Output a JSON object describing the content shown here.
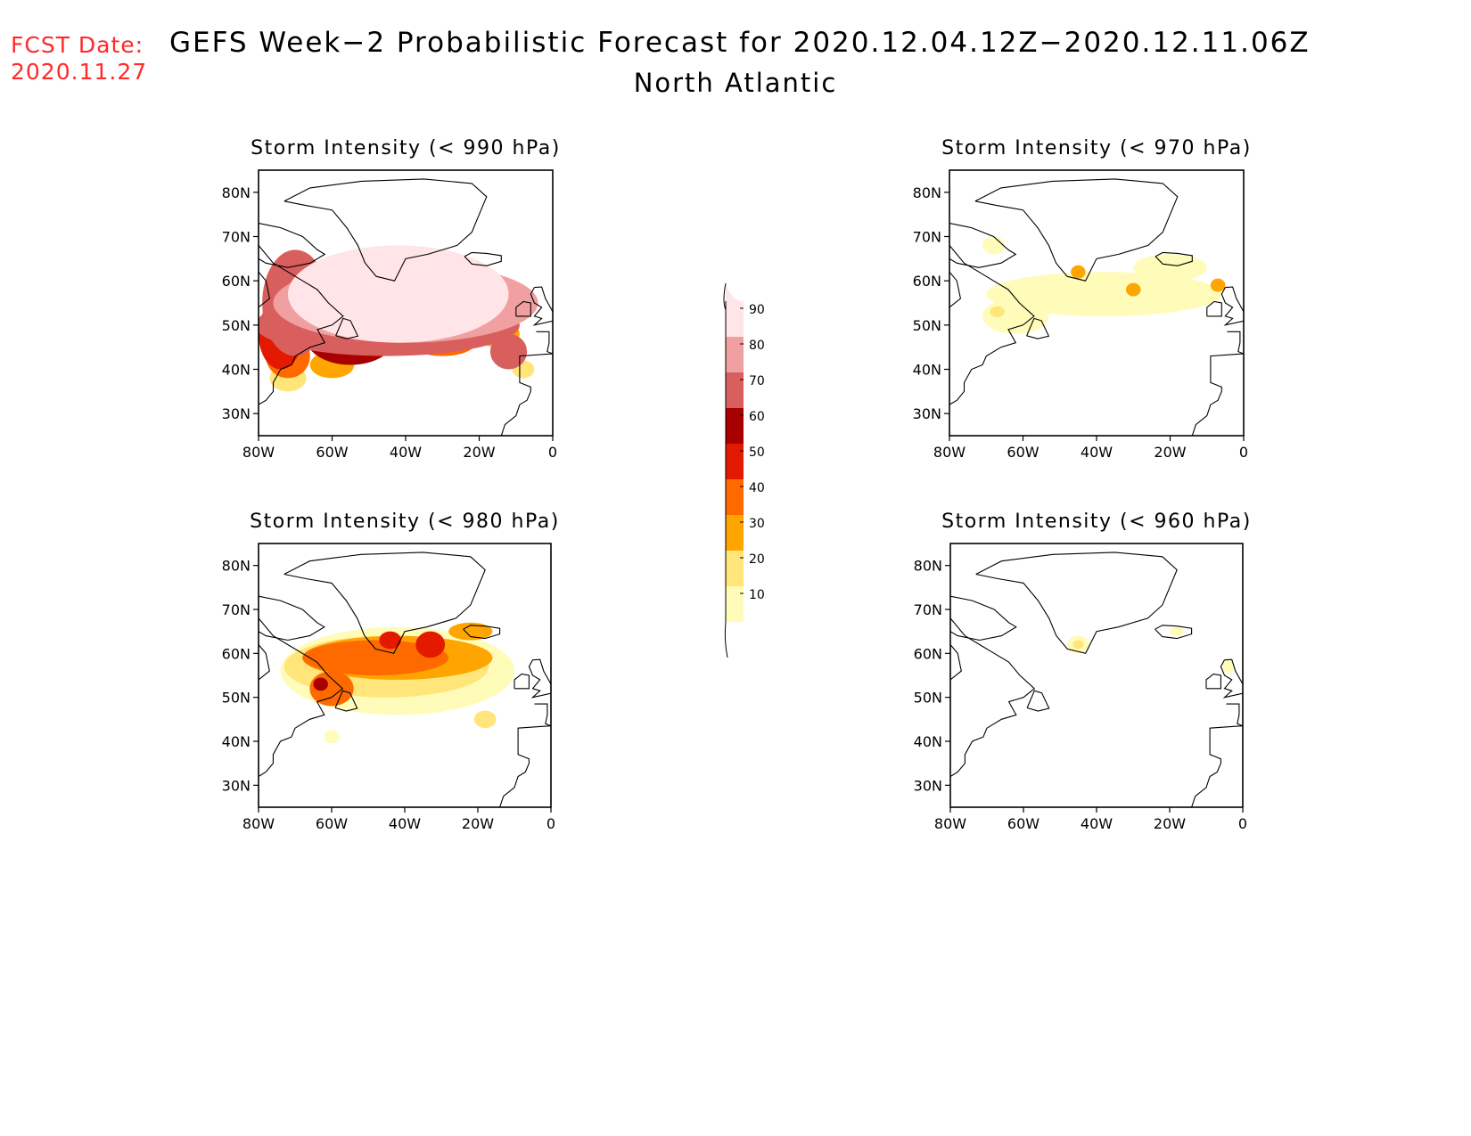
{
  "header": {
    "fcst_label": "FCST Date:",
    "fcst_date": "2020.11.27",
    "title": "GEFS Week−2 Probabilistic Forecast for 2020.12.04.12Z−2020.12.11.06Z",
    "region": "North Atlantic"
  },
  "axes": {
    "lon_ticks": [
      "80W",
      "60W",
      "40W",
      "20W",
      "0"
    ],
    "lon_values": [
      -80,
      -60,
      -40,
      -20,
      0
    ],
    "lat_ticks": [
      "80N",
      "70N",
      "60N",
      "50N",
      "40N",
      "30N"
    ],
    "lat_values": [
      80,
      70,
      60,
      50,
      40,
      30
    ],
    "lon_range": [
      -80,
      0
    ],
    "lat_range": [
      25,
      85
    ]
  },
  "colorbar": {
    "levels": [
      10,
      20,
      30,
      40,
      50,
      60,
      70,
      80,
      90
    ],
    "labels": [
      "10",
      "20",
      "30",
      "40",
      "50",
      "60",
      "70",
      "80",
      "90"
    ],
    "colors": [
      "#fffbb8",
      "#ffe57a",
      "#ffa500",
      "#ff6a00",
      "#e31a00",
      "#a80000",
      "#d95f5f",
      "#f0a0a0",
      "#ffe5e8"
    ]
  },
  "panels": [
    {
      "id": "p990",
      "title": "Storm Intensity (< 990 hPa)",
      "blobs": [
        {
          "lon": -42,
          "lat": 57,
          "rlon": 30,
          "rlat": 11,
          "level": 90
        },
        {
          "lon": -40,
          "lat": 55,
          "rlon": 36,
          "rlat": 9,
          "level": 80
        },
        {
          "lon": -45,
          "lat": 50,
          "rlon": 36,
          "rlat": 7,
          "level": 70
        },
        {
          "lon": -70,
          "lat": 55,
          "rlon": 9,
          "rlat": 12,
          "level": 70
        },
        {
          "lon": -12,
          "lat": 44,
          "rlon": 5,
          "rlat": 4,
          "level": 70
        },
        {
          "lon": -55,
          "lat": 47,
          "rlon": 12,
          "rlat": 6,
          "level": 60
        },
        {
          "lon": -74,
          "lat": 48,
          "rlon": 6,
          "rlat": 8,
          "level": 50
        },
        {
          "lon": -72,
          "lat": 43,
          "rlon": 6,
          "rlat": 5,
          "level": 40
        },
        {
          "lon": -30,
          "lat": 46,
          "rlon": 9,
          "rlat": 3,
          "level": 40
        },
        {
          "lon": -15,
          "lat": 48,
          "rlon": 6,
          "rlat": 3,
          "level": 30
        },
        {
          "lon": -72,
          "lat": 38,
          "rlon": 5,
          "rlat": 3,
          "level": 20
        },
        {
          "lon": -60,
          "lat": 41,
          "rlon": 6,
          "rlat": 3,
          "level": 30
        },
        {
          "lon": -8,
          "lat": 40,
          "rlon": 3,
          "rlat": 2,
          "level": 20
        }
      ]
    },
    {
      "id": "p970",
      "title": "Storm Intensity (< 970 hPa)",
      "blobs": [
        {
          "lon": -38,
          "lat": 57,
          "rlon": 32,
          "rlat": 5,
          "level": 10
        },
        {
          "lon": -62,
          "lat": 52,
          "rlon": 9,
          "rlat": 4,
          "level": 10
        },
        {
          "lon": -20,
          "lat": 63,
          "rlon": 10,
          "rlat": 3,
          "level": 10
        },
        {
          "lon": -68,
          "lat": 68,
          "rlon": 3,
          "rlat": 2,
          "level": 10
        },
        {
          "lon": -45,
          "lat": 62,
          "rlon": 2,
          "rlat": 1.5,
          "level": 30
        },
        {
          "lon": -30,
          "lat": 58,
          "rlon": 2,
          "rlat": 1.5,
          "level": 30
        },
        {
          "lon": -7,
          "lat": 59,
          "rlon": 2,
          "rlat": 1.5,
          "level": 30
        },
        {
          "lon": -67,
          "lat": 53,
          "rlon": 2,
          "rlat": 1.2,
          "level": 20
        }
      ]
    },
    {
      "id": "p980",
      "title": "Storm Intensity (< 980 hPa)",
      "blobs": [
        {
          "lon": -42,
          "lat": 56,
          "rlon": 32,
          "rlat": 10,
          "level": 10
        },
        {
          "lon": -45,
          "lat": 57,
          "rlon": 28,
          "rlat": 7,
          "level": 20
        },
        {
          "lon": -42,
          "lat": 59,
          "rlon": 26,
          "rlat": 5,
          "level": 30
        },
        {
          "lon": -48,
          "lat": 59,
          "rlon": 20,
          "rlat": 4,
          "level": 40
        },
        {
          "lon": -60,
          "lat": 52,
          "rlon": 6,
          "rlat": 4,
          "level": 40
        },
        {
          "lon": -44,
          "lat": 63,
          "rlon": 3,
          "rlat": 2,
          "level": 50
        },
        {
          "lon": -33,
          "lat": 62,
          "rlon": 4,
          "rlat": 3,
          "level": 50
        },
        {
          "lon": -63,
          "lat": 53,
          "rlon": 2,
          "rlat": 1.5,
          "level": 60
        },
        {
          "lon": -22,
          "lat": 65,
          "rlon": 6,
          "rlat": 2,
          "level": 30
        },
        {
          "lon": -18,
          "lat": 45,
          "rlon": 3,
          "rlat": 2,
          "level": 20
        },
        {
          "lon": -60,
          "lat": 41,
          "rlon": 2,
          "rlat": 1.5,
          "level": 10
        }
      ]
    },
    {
      "id": "p960",
      "title": "Storm Intensity (< 960 hPa)",
      "blobs": [
        {
          "lon": -45,
          "lat": 62,
          "rlon": 3,
          "rlat": 2,
          "level": 10
        },
        {
          "lon": -45,
          "lat": 62,
          "rlon": 1.5,
          "rlat": 1,
          "level": 20
        },
        {
          "lon": -18,
          "lat": 65,
          "rlon": 2,
          "rlat": 1,
          "level": 10
        },
        {
          "lon": -4,
          "lat": 57,
          "rlon": 1.5,
          "rlat": 1.5,
          "level": 10
        }
      ]
    }
  ]
}
